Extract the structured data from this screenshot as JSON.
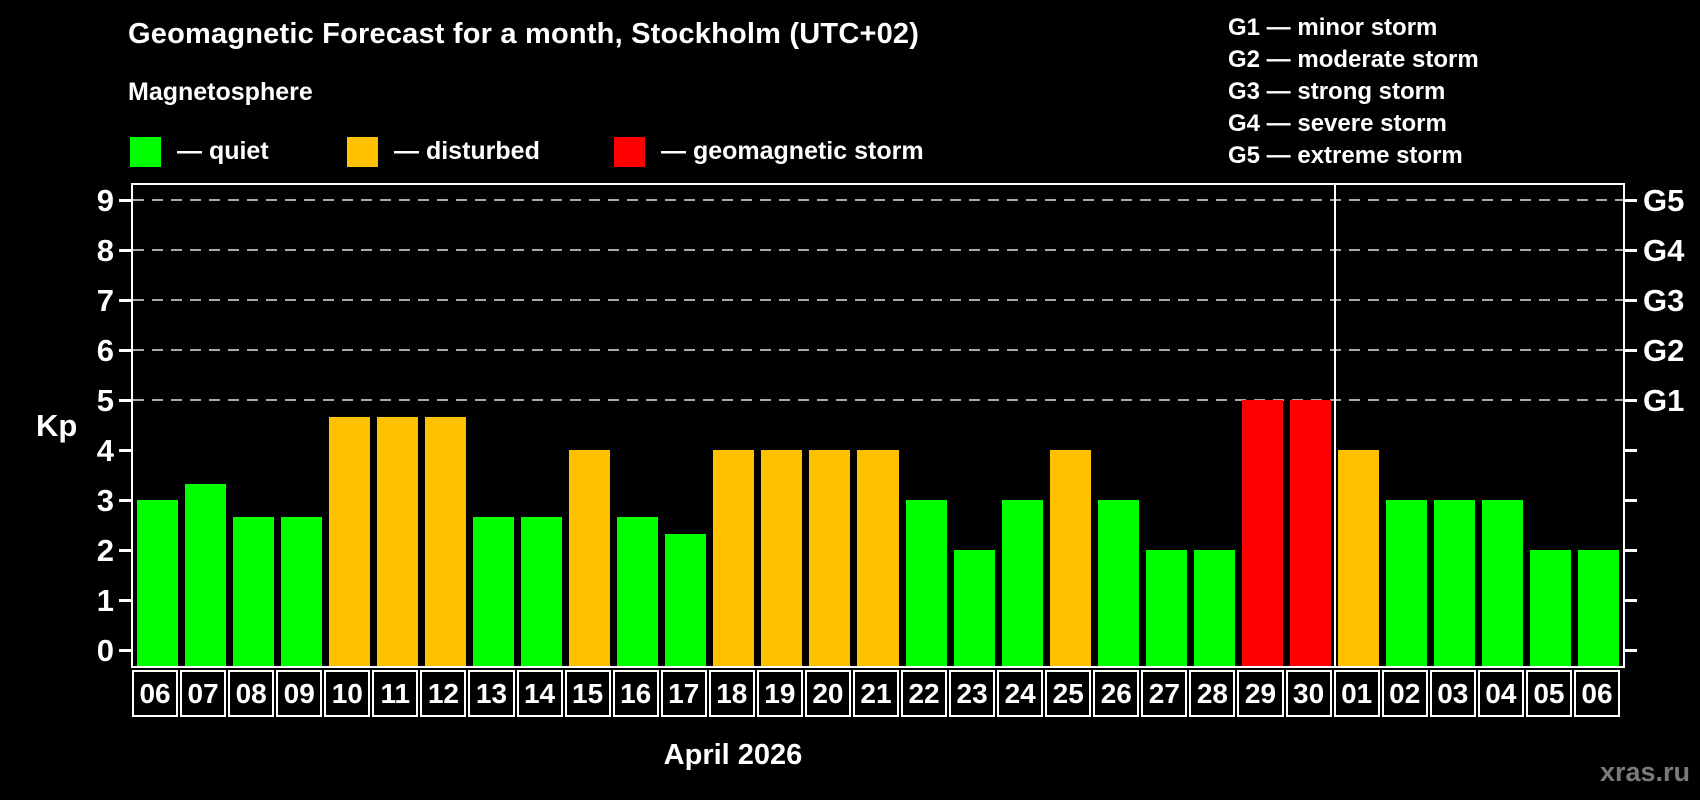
{
  "title": "Geomagnetic Forecast for a month, Stockholm (UTC+02)",
  "subtitle": "Magnetosphere",
  "legend": {
    "items": [
      {
        "key": "quiet",
        "label": "— quiet",
        "color": "#00ff00"
      },
      {
        "key": "disturbed",
        "label": "— disturbed",
        "color": "#ffc000"
      },
      {
        "key": "storm",
        "label": "— geomagnetic storm",
        "color": "#ff0000"
      }
    ]
  },
  "g_legend": [
    "G1 — minor storm",
    "G2 — moderate storm",
    "G3 — strong storm",
    "G4 — severe storm",
    "G5 — extreme storm"
  ],
  "watermark": "xras.ru",
  "chart_data": {
    "type": "bar",
    "title": "Geomagnetic Forecast for a month, Stockholm (UTC+02)",
    "ylabel": "Kp",
    "xlabel": "April 2026",
    "ylim": [
      0,
      9
    ],
    "yticks": [
      0,
      1,
      2,
      3,
      4,
      5,
      6,
      7,
      8,
      9
    ],
    "grid_values": [
      5,
      6,
      7,
      8,
      9
    ],
    "grid_style": "dashed",
    "legend_position": "top",
    "right_axis_labels": [
      {
        "value": 5,
        "label": "G1"
      },
      {
        "value": 6,
        "label": "G2"
      },
      {
        "value": 7,
        "label": "G3"
      },
      {
        "value": 8,
        "label": "G4"
      },
      {
        "value": 9,
        "label": "G5"
      }
    ],
    "colors": {
      "quiet": "#00ff00",
      "disturbed": "#ffc000",
      "storm": "#ff0000"
    },
    "categories": [
      "06",
      "07",
      "08",
      "09",
      "10",
      "11",
      "12",
      "13",
      "14",
      "15",
      "16",
      "17",
      "18",
      "19",
      "20",
      "21",
      "22",
      "23",
      "24",
      "25",
      "26",
      "27",
      "28",
      "29",
      "30",
      "01",
      "02",
      "03",
      "04",
      "05",
      "06"
    ],
    "values": [
      3.0,
      3.33,
      2.67,
      2.67,
      4.67,
      4.67,
      4.67,
      2.67,
      2.67,
      4.0,
      2.67,
      2.33,
      4.0,
      4.0,
      4.0,
      4.0,
      3.0,
      2.0,
      3.0,
      4.0,
      3.0,
      2.0,
      2.0,
      5.0,
      5.0,
      4.0,
      3.0,
      3.0,
      3.0,
      2.0,
      2.0
    ],
    "statuses": [
      "quiet",
      "quiet",
      "quiet",
      "quiet",
      "disturbed",
      "disturbed",
      "disturbed",
      "quiet",
      "quiet",
      "disturbed",
      "quiet",
      "quiet",
      "disturbed",
      "disturbed",
      "disturbed",
      "disturbed",
      "quiet",
      "quiet",
      "quiet",
      "disturbed",
      "quiet",
      "quiet",
      "quiet",
      "storm",
      "storm",
      "disturbed",
      "quiet",
      "quiet",
      "quiet",
      "quiet",
      "quiet"
    ],
    "month_separator_after_index": 24
  }
}
